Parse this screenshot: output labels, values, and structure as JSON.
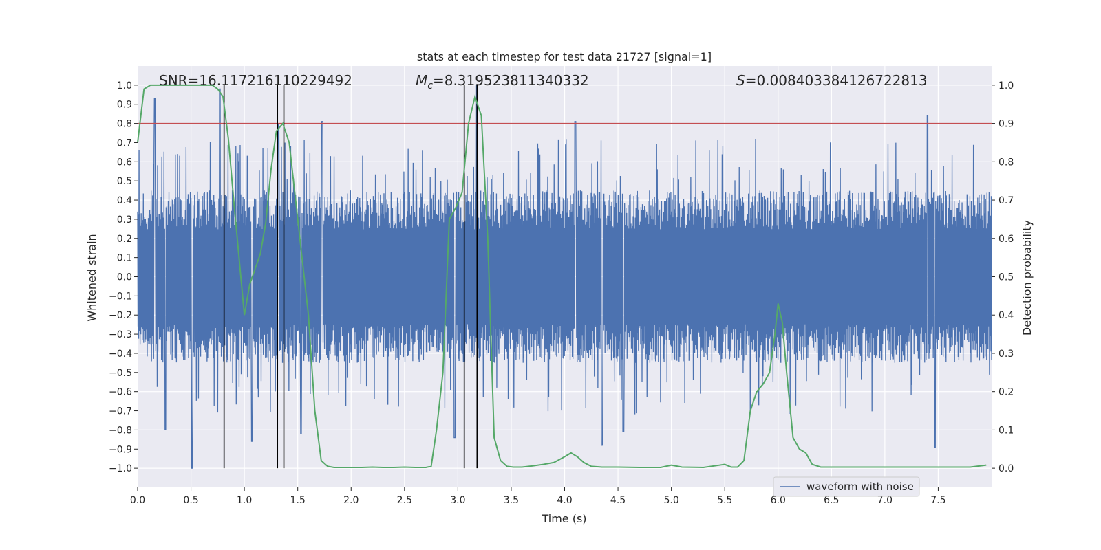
{
  "chart_data": {
    "type": "line",
    "title": "stats at each timestep for test data 21727 [signal=1]",
    "xlabel": "Time (s)",
    "ylabel_left": "Whitened strain",
    "ylabel_right": "Detection probability",
    "xlim": [
      0,
      8
    ],
    "ylim_left": [
      -1.1,
      1.1
    ],
    "ylim_right": [
      -0.05,
      1.05
    ],
    "xticks": [
      0.0,
      0.5,
      1.0,
      1.5,
      2.0,
      2.5,
      3.0,
      3.5,
      4.0,
      4.5,
      5.0,
      5.5,
      6.0,
      6.5,
      7.0,
      7.5
    ],
    "xtick_labels": [
      "0.0",
      "0.5",
      "1.0",
      "1.5",
      "2.0",
      "2.5",
      "3.0",
      "3.5",
      "4.0",
      "4.5",
      "5.0",
      "5.5",
      "6.0",
      "6.5",
      "7.0",
      "7.5"
    ],
    "yticks_left": [
      1.0,
      0.9,
      0.8,
      0.7,
      0.6,
      0.5,
      0.4,
      0.3,
      0.2,
      0.1,
      0.0,
      -0.1,
      -0.2,
      -0.3,
      -0.4,
      -0.5,
      -0.6,
      -0.7,
      -0.8,
      -0.9,
      -1.0
    ],
    "ytick_labels_left": [
      "1.0",
      "0.9",
      "0.8",
      "0.7",
      "0.6",
      "0.5",
      "0.4",
      "0.3",
      "0.2",
      "0.1",
      "0.0",
      "−0.1",
      "−0.2",
      "−0.3",
      "−0.4",
      "−0.5",
      "−0.6",
      "−0.7",
      "−0.8",
      "−0.9",
      "−1.0"
    ],
    "yticks_right": [
      1.0,
      0.9,
      0.8,
      0.7,
      0.6,
      0.5,
      0.4,
      0.3,
      0.2,
      0.1,
      0.0
    ],
    "ytick_labels_right": [
      "1.0",
      "0.9",
      "0.8",
      "0.7",
      "0.6",
      "0.5",
      "0.4",
      "0.3",
      "0.2",
      "0.1",
      "0.0"
    ],
    "grid": true,
    "legend": {
      "placement": "bottom-right",
      "entries": [
        {
          "label": "waveform with noise",
          "color": "#4c72b0"
        }
      ]
    },
    "annotations": {
      "snr": "SNR=16.117216110229492",
      "mc_symbol": "M",
      "mc_sub": "c",
      "mc_value": "=8.319523811340332",
      "s_symbol": "S",
      "s_value": "=0.008403384126722813"
    },
    "threshold": {
      "value": 0.9,
      "axis": "right",
      "color": "#c44e52"
    },
    "vertical_lines": [
      0.81,
      1.31,
      1.37,
      3.06,
      3.18
    ],
    "waveform": {
      "name": "waveform with noise",
      "color": "#4c72b0",
      "x_range": [
        0,
        8
      ],
      "typical_amplitude": 0.45,
      "peaks": [
        [
          0.16,
          0.93
        ],
        [
          0.77,
          0.98
        ],
        [
          1.32,
          0.8
        ],
        [
          1.73,
          0.81
        ],
        [
          3.18,
          1.0
        ],
        [
          4.1,
          0.81
        ],
        [
          7.4,
          0.84
        ],
        [
          0.51,
          -1.0
        ],
        [
          0.26,
          -0.8
        ],
        [
          1.07,
          -0.86
        ],
        [
          1.53,
          -0.82
        ],
        [
          2.97,
          -0.84
        ],
        [
          4.35,
          -0.88
        ],
        [
          4.55,
          -0.81
        ],
        [
          7.47,
          -0.89
        ]
      ]
    },
    "probability": {
      "name": "detection probability",
      "color": "#55a868",
      "axis": "right",
      "x": [
        0.0,
        0.06,
        0.12,
        0.2,
        0.3,
        0.4,
        0.5,
        0.6,
        0.65,
        0.7,
        0.75,
        0.8,
        0.85,
        0.9,
        0.95,
        1.0,
        1.05,
        1.1,
        1.15,
        1.2,
        1.25,
        1.3,
        1.36,
        1.42,
        1.48,
        1.54,
        1.6,
        1.66,
        1.72,
        1.78,
        1.84,
        1.9,
        2.0,
        2.1,
        2.2,
        2.3,
        2.4,
        2.5,
        2.6,
        2.7,
        2.75,
        2.8,
        2.86,
        2.92,
        2.98,
        3.04,
        3.1,
        3.16,
        3.22,
        3.28,
        3.34,
        3.4,
        3.46,
        3.52,
        3.6,
        3.7,
        3.8,
        3.9,
        4.0,
        4.06,
        4.12,
        4.18,
        4.25,
        4.35,
        4.5,
        4.7,
        4.9,
        5.0,
        5.1,
        5.3,
        5.45,
        5.5,
        5.56,
        5.62,
        5.68,
        5.74,
        5.8,
        5.86,
        5.92,
        5.97,
        6.0,
        6.04,
        6.08,
        6.14,
        6.2,
        6.26,
        6.32,
        6.4,
        6.6,
        6.8,
        7.0,
        7.2,
        7.4,
        7.6,
        7.8,
        7.95
      ],
      "y": [
        0.85,
        0.99,
        1.0,
        1.0,
        1.0,
        1.0,
        1.0,
        1.0,
        1.0,
        1.0,
        0.99,
        0.97,
        0.86,
        0.7,
        0.55,
        0.4,
        0.48,
        0.52,
        0.56,
        0.64,
        0.78,
        0.88,
        0.9,
        0.85,
        0.7,
        0.55,
        0.4,
        0.15,
        0.02,
        0.005,
        0.002,
        0.002,
        0.002,
        0.002,
        0.003,
        0.002,
        0.002,
        0.003,
        0.002,
        0.002,
        0.005,
        0.1,
        0.25,
        0.65,
        0.68,
        0.72,
        0.9,
        0.97,
        0.92,
        0.6,
        0.08,
        0.02,
        0.005,
        0.003,
        0.003,
        0.006,
        0.01,
        0.015,
        0.03,
        0.04,
        0.03,
        0.015,
        0.005,
        0.003,
        0.003,
        0.002,
        0.002,
        0.008,
        0.003,
        0.002,
        0.008,
        0.01,
        0.003,
        0.003,
        0.02,
        0.15,
        0.2,
        0.22,
        0.25,
        0.35,
        0.43,
        0.38,
        0.25,
        0.08,
        0.05,
        0.04,
        0.01,
        0.003,
        0.003,
        0.003,
        0.003,
        0.003,
        0.003,
        0.003,
        0.003,
        0.008
      ]
    }
  }
}
